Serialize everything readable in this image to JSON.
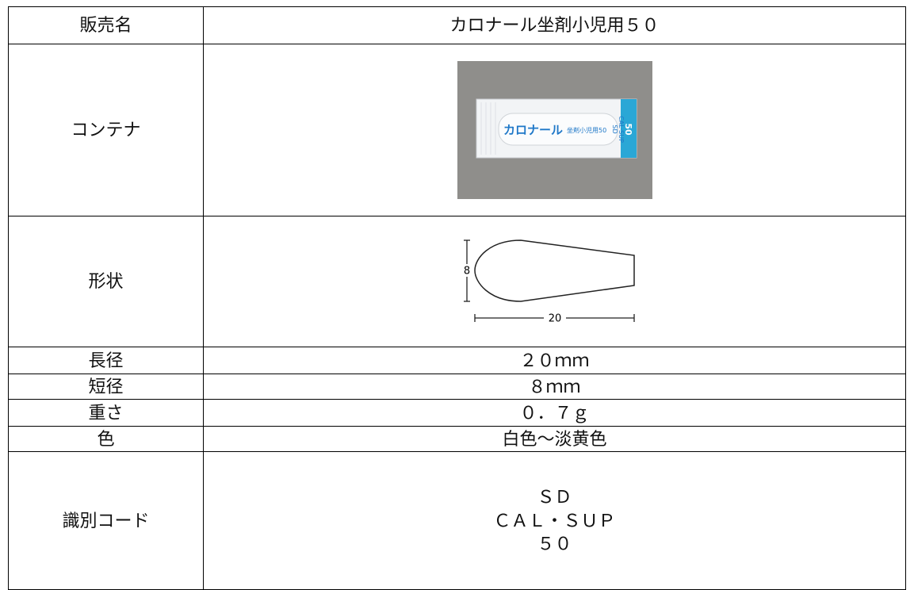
{
  "table": {
    "rows": [
      {
        "label": "販売名",
        "value": "カロナール坐剤小児用５０"
      },
      {
        "label": "コンテナ",
        "image": {
          "brand": "カロナール",
          "name": "坐剤小児用50",
          "code": [
            "SD",
            "CAL·SUP"
          ],
          "strength": "50"
        }
      },
      {
        "label": "形状",
        "drawing": {
          "height": 8,
          "length": 20
        }
      },
      {
        "label": "長径",
        "value": "２０ｍｍ"
      },
      {
        "label": "短径",
        "value": "８ｍｍ"
      },
      {
        "label": "重さ",
        "value": "０．７ｇ"
      },
      {
        "label": "色",
        "value": "白色～淡黄色"
      },
      {
        "label": "識別コード",
        "lines": [
          "ＳＤ",
          "ＣＡＬ・ＳＵＰ",
          "５０"
        ]
      }
    ]
  }
}
